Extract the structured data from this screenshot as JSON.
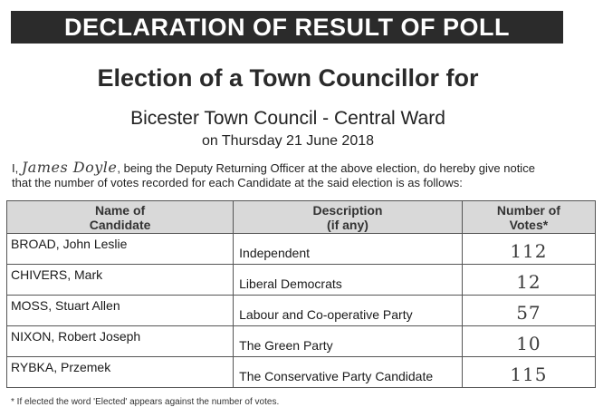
{
  "banner": "DECLARATION OF RESULT OF POLL",
  "title": "Election of a Town Councillor for",
  "council": "Bicester Town Council - Central Ward",
  "date": "on Thursday 21 June 2018",
  "notice": {
    "prefix": "I,",
    "officer_signature": "James Doyle",
    "line1": "being the Deputy Returning Officer at the above election, do hereby give notice",
    "line2": "that the number of votes recorded for each Candidate at the said election is as follows:"
  },
  "table": {
    "headers": {
      "name": [
        "Name of",
        "Candidate"
      ],
      "description": [
        "Description",
        "(if any)"
      ],
      "votes": [
        "Number of",
        "Votes*"
      ]
    },
    "rows": [
      {
        "name": "BROAD, John Leslie",
        "description": "Independent",
        "votes": "112"
      },
      {
        "name": "CHIVERS, Mark",
        "description": "Liberal Democrats",
        "votes": "12"
      },
      {
        "name": "MOSS, Stuart Allen",
        "description": "Labour and Co-operative Party",
        "votes": "57"
      },
      {
        "name": "NIXON, Robert Joseph",
        "description": "The Green Party",
        "votes": "10"
      },
      {
        "name": "RYBKA, Przemek",
        "description": "The Conservative Party Candidate",
        "votes": "115"
      }
    ]
  },
  "footnote": "* If elected the word 'Elected' appears against the number of votes."
}
